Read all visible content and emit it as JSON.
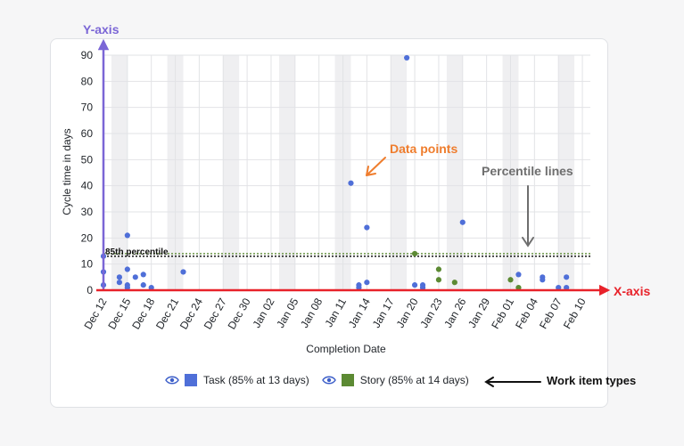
{
  "chart_data": {
    "type": "scatter",
    "xlabel": "Completion Date",
    "ylabel": "Cycle time in days",
    "ylim": [
      0,
      90
    ],
    "yticks": [
      0,
      10,
      20,
      30,
      40,
      50,
      60,
      70,
      80,
      90
    ],
    "x_ticks": [
      "Dec 12",
      "Dec 15",
      "Dec 18",
      "Dec 21",
      "Dec 24",
      "Dec 27",
      "Dec 30",
      "Jan 02",
      "Jan 05",
      "Jan 08",
      "Jan 11",
      "Jan 14",
      "Jan 17",
      "Jan 20",
      "Jan 23",
      "Jan 26",
      "Jan 29",
      "Feb 01",
      "Feb 04",
      "Feb 07",
      "Feb 10"
    ],
    "x_tick_day_index": [
      0,
      3,
      6,
      9,
      12,
      15,
      18,
      21,
      24,
      27,
      30,
      33,
      36,
      39,
      42,
      45,
      48,
      51,
      54,
      57,
      60
    ],
    "weekend_shading": true,
    "grid": true,
    "percentile_label": "85th percentile",
    "series": [
      {
        "name": "Task",
        "color": "#4f6fd8",
        "percentile_85": 13,
        "legend": "Task (85% at 13 days)",
        "points": [
          {
            "x": "Dec 12",
            "y": 13
          },
          {
            "x": "Dec 12",
            "y": 7
          },
          {
            "x": "Dec 12",
            "y": 2
          },
          {
            "x": "Dec 14",
            "y": 5
          },
          {
            "x": "Dec 14",
            "y": 3
          },
          {
            "x": "Dec 15",
            "y": 21
          },
          {
            "x": "Dec 15",
            "y": 8
          },
          {
            "x": "Dec 15",
            "y": 2
          },
          {
            "x": "Dec 15",
            "y": 1
          },
          {
            "x": "Dec 16",
            "y": 5
          },
          {
            "x": "Dec 17",
            "y": 6
          },
          {
            "x": "Dec 17",
            "y": 2
          },
          {
            "x": "Dec 18",
            "y": 1
          },
          {
            "x": "Dec 22",
            "y": 7
          },
          {
            "x": "Jan 12",
            "y": 41
          },
          {
            "x": "Jan 13",
            "y": 1
          },
          {
            "x": "Jan 13",
            "y": 2
          },
          {
            "x": "Jan 14",
            "y": 24
          },
          {
            "x": "Jan 14",
            "y": 3
          },
          {
            "x": "Jan 19",
            "y": 89
          },
          {
            "x": "Jan 20",
            "y": 2
          },
          {
            "x": "Jan 21",
            "y": 2
          },
          {
            "x": "Jan 21",
            "y": 1
          },
          {
            "x": "Jan 26",
            "y": 26
          },
          {
            "x": "Feb 02",
            "y": 6
          },
          {
            "x": "Feb 05",
            "y": 5
          },
          {
            "x": "Feb 05",
            "y": 4
          },
          {
            "x": "Feb 07",
            "y": 1
          },
          {
            "x": "Feb 08",
            "y": 5
          },
          {
            "x": "Feb 08",
            "y": 1
          }
        ]
      },
      {
        "name": "Story",
        "color": "#5c8a33",
        "percentile_85": 14,
        "legend": "Story (85% at 14 days)",
        "points": [
          {
            "x": "Jan 20",
            "y": 14
          },
          {
            "x": "Jan 23",
            "y": 8
          },
          {
            "x": "Jan 23",
            "y": 4
          },
          {
            "x": "Jan 25",
            "y": 3
          },
          {
            "x": "Feb 01",
            "y": 4
          },
          {
            "x": "Feb 02",
            "y": 1
          }
        ]
      }
    ]
  },
  "annotations": {
    "y_axis": "Y-axis",
    "x_axis": "X-axis",
    "data_points": "Data points",
    "percentile_lines": "Percentile lines",
    "work_item_types": "Work item types"
  },
  "colors": {
    "y_annotation": "#7b66d6",
    "x_annotation": "#e8222a",
    "data_points_annotation": "#ef7d2d",
    "percentile_annotation": "#6e6e6e"
  },
  "icons": {
    "legend_toggle": "eye-icon"
  }
}
